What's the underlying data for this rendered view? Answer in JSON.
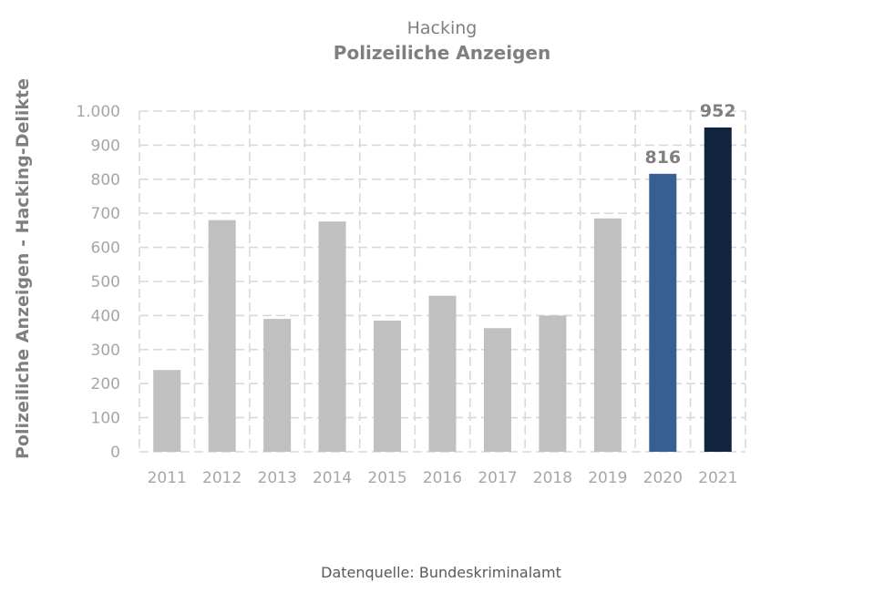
{
  "chart_data": {
    "type": "bar",
    "title": "Hacking",
    "subtitle": "Polizeiliche Anzeigen",
    "ylabel": "Polizeiliche Anzeigen - Hacking-Delikte",
    "xlabel": "",
    "categories": [
      "2011",
      "2012",
      "2013",
      "2014",
      "2015",
      "2016",
      "2017",
      "2018",
      "2019",
      "2020",
      "2021"
    ],
    "values": [
      240,
      680,
      390,
      676,
      385,
      458,
      363,
      400,
      685,
      816,
      952
    ],
    "data_labels": [
      {
        "category": "2020",
        "text": "816"
      },
      {
        "category": "2021",
        "text": "952"
      }
    ],
    "yticks": [
      {
        "value": 0,
        "label": "0"
      },
      {
        "value": 100,
        "label": "100"
      },
      {
        "value": 200,
        "label": "200"
      },
      {
        "value": 300,
        "label": "300"
      },
      {
        "value": 400,
        "label": "400"
      },
      {
        "value": 500,
        "label": "500"
      },
      {
        "value": 600,
        "label": "600"
      },
      {
        "value": 700,
        "label": "700"
      },
      {
        "value": 800,
        "label": "800"
      },
      {
        "value": 900,
        "label": "900"
      },
      {
        "value": 1000,
        "label": "1.000"
      }
    ],
    "ylim": [
      0,
      1000
    ],
    "grid": true,
    "bar_colors": [
      "#c0c0c0",
      "#c0c0c0",
      "#c0c0c0",
      "#c0c0c0",
      "#c0c0c0",
      "#c0c0c0",
      "#c0c0c0",
      "#c0c0c0",
      "#c0c0c0",
      "#376092",
      "#10243e"
    ],
    "source": "Datenquelle: Bundeskriminalamt"
  }
}
